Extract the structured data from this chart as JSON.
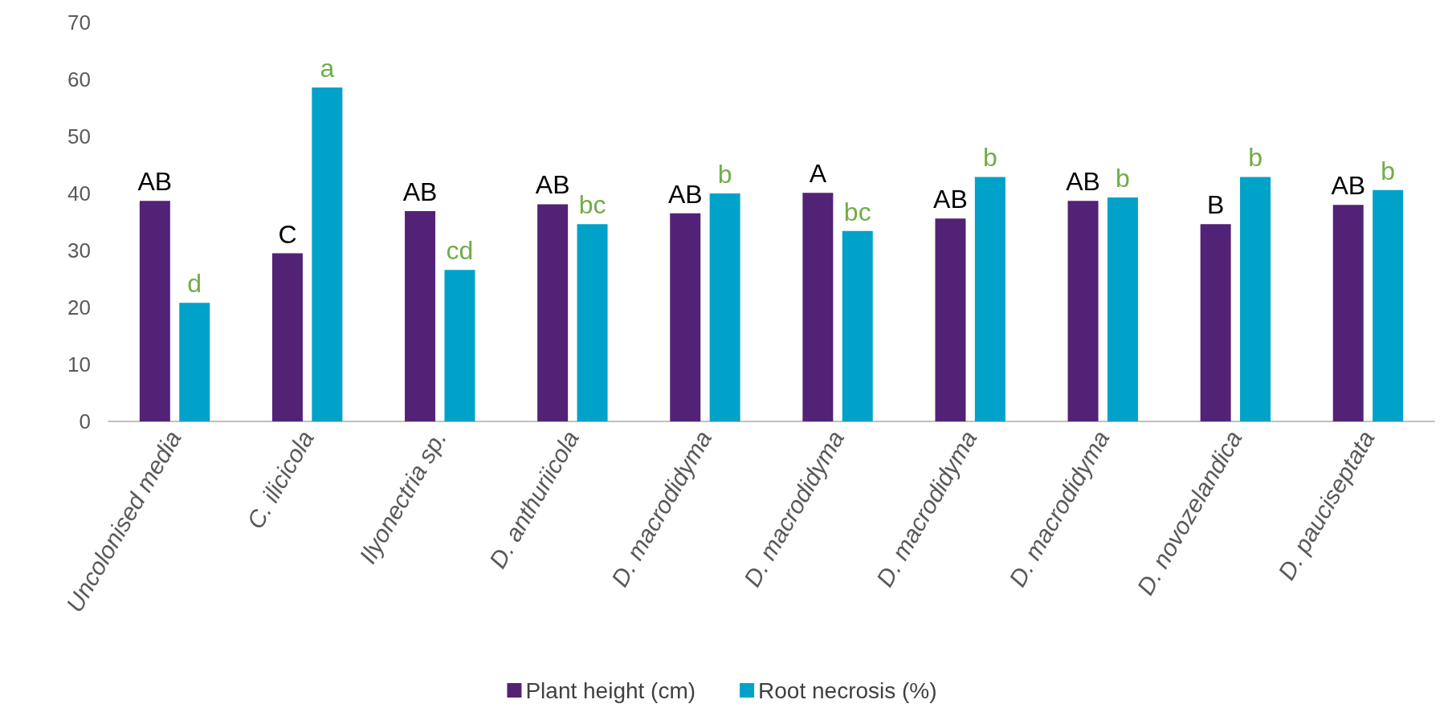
{
  "chart_data": {
    "type": "bar",
    "categories": [
      "Uncolonised media",
      "C. ilicicola",
      "Ilyonectria sp.",
      "D. anthuriicola",
      "D. macrodidyma",
      "D. macrodidyma",
      "D. macrodidyma",
      "D. macrodidyma",
      "D. novozelandica",
      "D. pauciseptata"
    ],
    "series": [
      {
        "name": "Plant height (cm)",
        "color": "#522277",
        "values": [
          38.7,
          29.5,
          36.9,
          38.1,
          36.5,
          40.1,
          35.6,
          38.7,
          34.6,
          38.0
        ],
        "value_labels": [
          "AB",
          "C",
          "AB",
          "AB",
          "AB",
          "A",
          "AB",
          "AB",
          "B",
          "AB"
        ]
      },
      {
        "name": "Root necrosis (%)",
        "color": "#00a2c9",
        "values": [
          20.8,
          58.6,
          26.6,
          34.6,
          40.0,
          33.4,
          42.9,
          39.3,
          42.9,
          40.6
        ],
        "value_labels": [
          "d",
          "a",
          "cd",
          "bc",
          "b",
          "bc",
          "b",
          "b",
          "b",
          "b"
        ]
      }
    ],
    "ylim": [
      0,
      70
    ],
    "yticks": [
      0,
      10,
      20,
      30,
      40,
      50,
      60,
      70
    ],
    "grid": false,
    "legend": "bottom"
  }
}
